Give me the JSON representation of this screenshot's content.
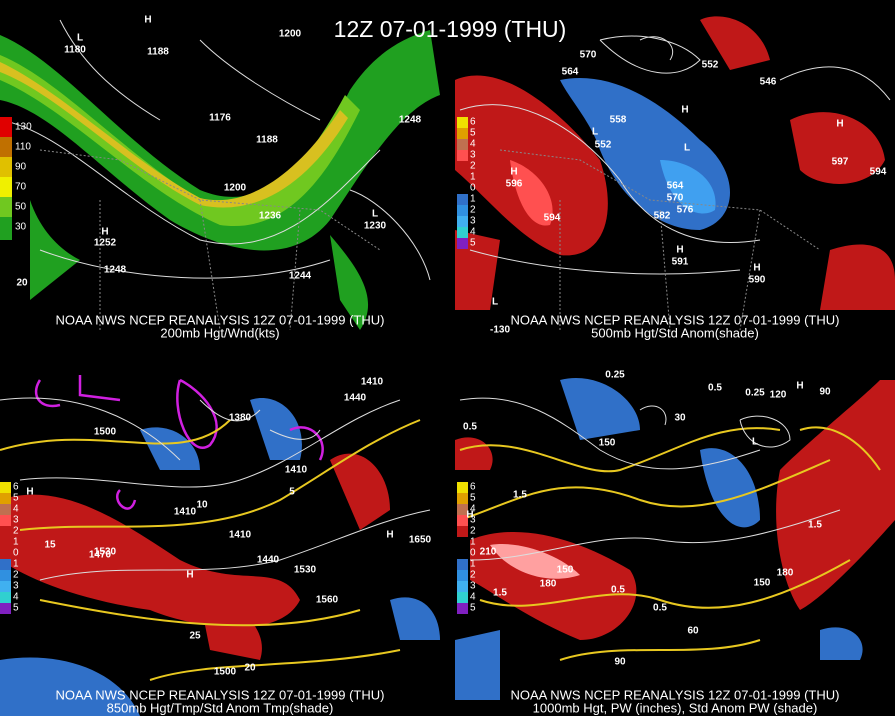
{
  "title": "12Z 07-01-1999 (THU)",
  "panels": [
    {
      "source": "NOAA NWS NCEP REANALYSIS 12Z 07-01-1999 (THU)",
      "caption": "200mb Hgt/Wnd(kts)",
      "legend": [
        "130",
        "110",
        "90",
        "70",
        "50",
        "30"
      ],
      "labels": [
        "L",
        "1180",
        "H",
        "1188",
        "1176",
        "1188",
        "1200",
        "1200",
        "1236",
        "1248",
        "L",
        "1230",
        "H",
        "1252",
        "1248",
        "1244",
        "20"
      ]
    },
    {
      "source": "NOAA NWS NCEP REANALYSIS 12Z 07-01-1999 (THU)",
      "caption": "500mb Hgt/Std Anom(shade)",
      "legend": [
        "6",
        "5",
        "4",
        "3",
        "2",
        "1",
        "0",
        "1",
        "2",
        "3",
        "4",
        "5"
      ],
      "labels": [
        "570",
        "564",
        "558",
        "552",
        "564",
        "570",
        "576",
        "582",
        "594",
        "594",
        "H",
        "596",
        "H",
        "597",
        "H",
        "L",
        "L",
        "H",
        "591",
        "H",
        "590",
        "546",
        "552",
        "L",
        "-130"
      ]
    },
    {
      "source": "NOAA NWS NCEP REANALYSIS 12Z 07-01-1999 (THU)",
      "caption": "850mb Hgt/Tmp/Std Anom Tmp(shade)",
      "legend": [
        "6",
        "5",
        "4",
        "3",
        "2",
        "1",
        "0",
        "1",
        "2",
        "3",
        "4",
        "5"
      ],
      "labels": [
        "1500",
        "1470",
        "1530",
        "1410",
        "1410",
        "1440",
        "1530",
        "1560",
        "1650",
        "1410",
        "1440",
        "1380",
        "1410",
        "H",
        "20",
        "1500",
        "25",
        "15",
        "10",
        "5",
        "H",
        "H"
      ]
    },
    {
      "source": "NOAA NWS NCEP REANALYSIS 12Z 07-01-1999 (THU)",
      "caption": "1000mb Hgt, PW (inches), Std Anom PW (shade)",
      "legend": [
        "6",
        "5",
        "4",
        "3",
        "2",
        "1",
        "0",
        "1",
        "2",
        "3",
        "4",
        "5"
      ],
      "labels": [
        "0.25",
        "0.5",
        "1.5",
        "150",
        "180",
        "150",
        "210",
        "1.5",
        "0.5",
        "0.5",
        "60",
        "90",
        "150",
        "180",
        "1.5",
        "0.25",
        "0.5",
        "90",
        "120",
        "H",
        "L",
        "30",
        "H"
      ]
    }
  ]
}
